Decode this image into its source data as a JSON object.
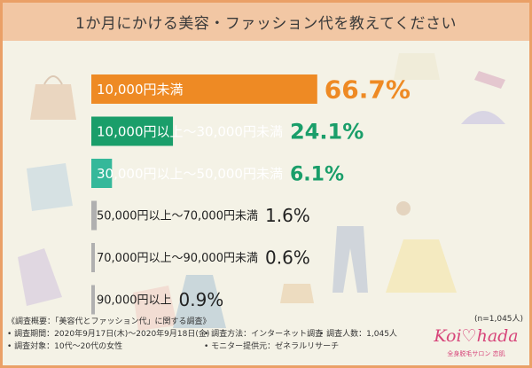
{
  "title": "1か月にかける美容・ファッション代を教えてください",
  "chart_data": {
    "type": "bar",
    "orientation": "horizontal",
    "categories": [
      "10,000円未満",
      "10,000円以上～30,000円未満",
      "30,000円以上～50,000円未満",
      "50,000円以上～70,000円未満",
      "70,000円以上～90,000円未満",
      "90,000円以上"
    ],
    "values": [
      66.7,
      24.1,
      6.1,
      1.6,
      0.6,
      0.9
    ],
    "value_labels": [
      "66.7%",
      "24.1%",
      "6.1%",
      "1.6%",
      "0.6%",
      "0.9%"
    ],
    "colors": [
      "#ee8a24",
      "#1a9e6a",
      "#35b89a",
      "#b0b0b0",
      "#b0b0b0",
      "#b0b0b0"
    ],
    "label_colors": [
      "#ffffff",
      "#ffffff",
      "#ffffff",
      "#222222",
      "#222222",
      "#222222"
    ],
    "value_colors": [
      "#ee8a24",
      "#1a9e6a",
      "#1a9e6a",
      "#222222",
      "#222222",
      "#222222"
    ],
    "xlim": [
      0,
      100
    ]
  },
  "sample_note": "(n=1,045人)",
  "footer": {
    "overview": "《調査概要：「美容代とファッション代」に関する調査》",
    "period": "• 調査期間：2020年9月17日(木)～2020年9月18日(金)",
    "method": "• 調査方法：インターネット調査",
    "count": "• 調査人数：1,045人",
    "target": "• 調査対象：10代～20代の女性",
    "provider": "• モニター提供元：ゼネラルリサーチ"
  },
  "logo": {
    "text": "Koi♡hada",
    "sub": "全身脱毛サロン 恋肌"
  }
}
